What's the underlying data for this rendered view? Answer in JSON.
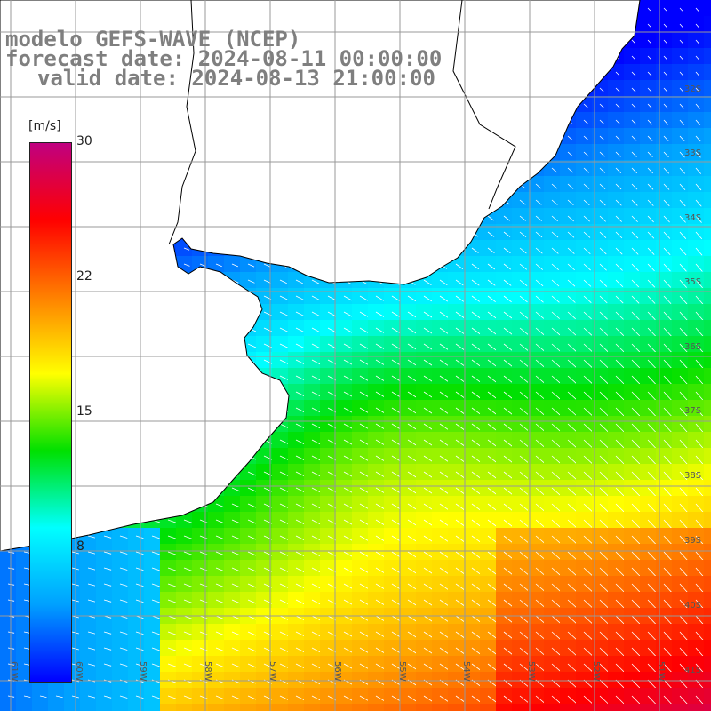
{
  "title": {
    "line1": "modelo GEFS-WAVE (NCEP)",
    "line2": "forecast date: 2024-08-11 00:00:00",
    "line3": "valid date: 2024-08-13 21:00:00"
  },
  "colorbar": {
    "unit": "[m/s]",
    "ticks": [
      "30",
      "22",
      "15",
      "8"
    ],
    "tick_values": [
      30,
      22,
      15,
      8
    ],
    "min": 0,
    "max": 30,
    "colors": [
      "#0000ff",
      "#00a0ff",
      "#00ffff",
      "#00e000",
      "#ffff00",
      "#ff8000",
      "#ff0000",
      "#c00080"
    ]
  },
  "lat_labels": [
    "32S",
    "33S",
    "34S",
    "35S",
    "36S",
    "37S",
    "38S",
    "39S",
    "40S",
    "41S"
  ],
  "lon_labels": [
    "61W",
    "60W",
    "59W",
    "58W",
    "57W",
    "56W",
    "55W",
    "54W",
    "53W",
    "52W",
    "51W"
  ],
  "map": {
    "land_color": "#ffffff",
    "grid_color": "#999999",
    "coast_color": "#000000",
    "arrow_color": "#ffffff"
  }
}
